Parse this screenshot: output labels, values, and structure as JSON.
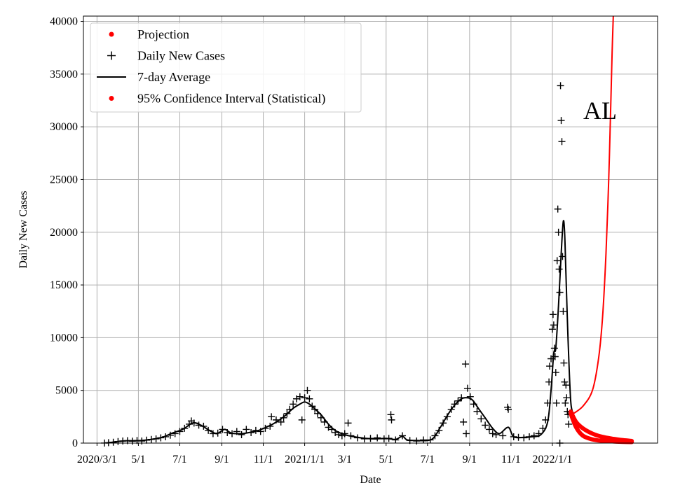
{
  "chart_data": {
    "type": "line",
    "xlabel": "Date",
    "ylabel": "Daily New Cases",
    "annotation": "AL",
    "x_axis": {
      "type": "date",
      "range": [
        "2020-02-10",
        "2022-06-05"
      ],
      "ticks": [
        {
          "date": "2020-03-01",
          "label": "2020/3/1"
        },
        {
          "date": "2020-05-01",
          "label": "5/1"
        },
        {
          "date": "2020-07-01",
          "label": "7/1"
        },
        {
          "date": "2020-09-01",
          "label": "9/1"
        },
        {
          "date": "2020-11-01",
          "label": "11/1"
        },
        {
          "date": "2021-01-01",
          "label": "2021/1/1"
        },
        {
          "date": "2021-03-01",
          "label": "3/1"
        },
        {
          "date": "2021-05-01",
          "label": "5/1"
        },
        {
          "date": "2021-07-01",
          "label": "7/1"
        },
        {
          "date": "2021-09-01",
          "label": "9/1"
        },
        {
          "date": "2021-11-01",
          "label": "11/1"
        },
        {
          "date": "2022-01-01",
          "label": "2022/1/1"
        }
      ]
    },
    "y_axis": {
      "range": [
        0,
        40500
      ],
      "ticks": [
        0,
        5000,
        10000,
        15000,
        20000,
        25000,
        30000,
        35000,
        40000
      ]
    },
    "grid": true,
    "legend_position": "top-left",
    "legend": [
      {
        "label": "Projection",
        "marker": "dot",
        "color": "#ff0000"
      },
      {
        "label": "Daily New Cases",
        "marker": "plus",
        "color": "#000000"
      },
      {
        "label": "7-day Average",
        "marker": "line",
        "color": "#000000"
      },
      {
        "label": "95% Confidence Interval (Statistical)",
        "marker": "dot",
        "color": "#ff0000"
      }
    ],
    "seven_day_average": {
      "color": "#000000",
      "points": [
        [
          "2020-03-15",
          10
        ],
        [
          "2020-04-01",
          150
        ],
        [
          "2020-04-15",
          220
        ],
        [
          "2020-05-01",
          230
        ],
        [
          "2020-05-20",
          350
        ],
        [
          "2020-06-05",
          550
        ],
        [
          "2020-06-20",
          950
        ],
        [
          "2020-07-05",
          1300
        ],
        [
          "2020-07-18",
          1850
        ],
        [
          "2020-07-25",
          1900
        ],
        [
          "2020-08-05",
          1550
        ],
        [
          "2020-08-15",
          1150
        ],
        [
          "2020-08-25",
          900
        ],
        [
          "2020-09-05",
          1300
        ],
        [
          "2020-09-15",
          950
        ],
        [
          "2020-10-01",
          900
        ],
        [
          "2020-10-15",
          1050
        ],
        [
          "2020-10-25",
          1200
        ],
        [
          "2020-11-05",
          1500
        ],
        [
          "2020-11-15",
          1800
        ],
        [
          "2020-11-25",
          2200
        ],
        [
          "2020-12-05",
          2700
        ],
        [
          "2020-12-15",
          3300
        ],
        [
          "2020-12-25",
          3700
        ],
        [
          "2021-01-01",
          3900
        ],
        [
          "2021-01-08",
          3700
        ],
        [
          "2021-01-15",
          3300
        ],
        [
          "2021-01-25",
          2700
        ],
        [
          "2021-02-05",
          1800
        ],
        [
          "2021-02-15",
          1200
        ],
        [
          "2021-03-01",
          800
        ],
        [
          "2021-03-15",
          600
        ],
        [
          "2021-04-01",
          450
        ],
        [
          "2021-04-15",
          400
        ],
        [
          "2021-05-01",
          450
        ],
        [
          "2021-05-15",
          350
        ],
        [
          "2021-05-25",
          650
        ],
        [
          "2021-06-01",
          300
        ],
        [
          "2021-06-15",
          250
        ],
        [
          "2021-07-01",
          250
        ],
        [
          "2021-07-10",
          500
        ],
        [
          "2021-07-20",
          1500
        ],
        [
          "2021-08-01",
          2800
        ],
        [
          "2021-08-10",
          3600
        ],
        [
          "2021-08-20",
          4200
        ],
        [
          "2021-08-28",
          4300
        ],
        [
          "2021-09-05",
          4100
        ],
        [
          "2021-09-15",
          3200
        ],
        [
          "2021-09-25",
          2300
        ],
        [
          "2021-10-05",
          1400
        ],
        [
          "2021-10-15",
          900
        ],
        [
          "2021-10-28",
          1500
        ],
        [
          "2021-11-05",
          600
        ],
        [
          "2021-11-20",
          550
        ],
        [
          "2021-12-01",
          600
        ],
        [
          "2021-12-15",
          800
        ],
        [
          "2021-12-25",
          2000
        ],
        [
          "2021-12-30",
          5000
        ],
        [
          "2022-01-03",
          8500
        ],
        [
          "2022-01-06",
          9000
        ],
        [
          "2022-01-10",
          13000
        ],
        [
          "2022-01-14",
          18000
        ],
        [
          "2022-01-17",
          21000
        ],
        [
          "2022-01-19",
          20000
        ],
        [
          "2022-01-21",
          16000
        ],
        [
          "2022-01-24",
          10000
        ],
        [
          "2022-01-28",
          4000
        ],
        [
          "2022-02-01",
          2800
        ]
      ]
    },
    "projection": {
      "color": "#ff0000",
      "points": [
        [
          "2022-02-01",
          2800
        ],
        [
          "2022-02-15",
          3500
        ],
        [
          "2022-03-01",
          5000
        ],
        [
          "2022-03-10",
          8000
        ],
        [
          "2022-03-16",
          12000
        ],
        [
          "2022-03-21",
          18000
        ],
        [
          "2022-03-25",
          25000
        ],
        [
          "2022-03-28",
          32000
        ],
        [
          "2022-03-30",
          37000
        ],
        [
          "2022-04-01",
          41000
        ]
      ]
    },
    "confidence_interval": {
      "color": "#ff0000",
      "upper": [
        [
          "2022-01-28",
          3000
        ],
        [
          "2022-02-05",
          2000
        ],
        [
          "2022-02-15",
          1400
        ],
        [
          "2022-03-01",
          900
        ],
        [
          "2022-03-15",
          600
        ],
        [
          "2022-04-01",
          400
        ],
        [
          "2022-04-15",
          280
        ],
        [
          "2022-04-28",
          200
        ]
      ],
      "lower": [
        [
          "2022-01-28",
          2800
        ],
        [
          "2022-02-05",
          1500
        ],
        [
          "2022-02-15",
          700
        ],
        [
          "2022-03-01",
          350
        ],
        [
          "2022-03-15",
          220
        ],
        [
          "2022-04-01",
          160
        ],
        [
          "2022-04-15",
          120
        ],
        [
          "2022-04-28",
          100
        ]
      ]
    },
    "daily_new_cases": [
      [
        "2020-03-12",
        5
      ],
      [
        "2020-03-18",
        40
      ],
      [
        "2020-03-25",
        80
      ],
      [
        "2020-04-01",
        150
      ],
      [
        "2020-04-08",
        200
      ],
      [
        "2020-04-15",
        230
      ],
      [
        "2020-04-22",
        180
      ],
      [
        "2020-04-29",
        250
      ],
      [
        "2020-05-06",
        200
      ],
      [
        "2020-05-13",
        280
      ],
      [
        "2020-05-20",
        350
      ],
      [
        "2020-05-27",
        400
      ],
      [
        "2020-06-03",
        500
      ],
      [
        "2020-06-10",
        600
      ],
      [
        "2020-06-17",
        750
      ],
      [
        "2020-06-24",
        900
      ],
      [
        "2020-07-01",
        1100
      ],
      [
        "2020-07-08",
        1400
      ],
      [
        "2020-07-15",
        1800
      ],
      [
        "2020-07-18",
        2100
      ],
      [
        "2020-07-22",
        1900
      ],
      [
        "2020-07-29",
        1700
      ],
      [
        "2020-08-05",
        1600
      ],
      [
        "2020-08-12",
        1200
      ],
      [
        "2020-08-19",
        900
      ],
      [
        "2020-08-26",
        950
      ],
      [
        "2020-09-02",
        1300
      ],
      [
        "2020-09-09",
        1000
      ],
      [
        "2020-09-16",
        900
      ],
      [
        "2020-09-23",
        1100
      ],
      [
        "2020-09-30",
        800
      ],
      [
        "2020-10-07",
        1300
      ],
      [
        "2020-10-14",
        1000
      ],
      [
        "2020-10-21",
        1200
      ],
      [
        "2020-10-28",
        1100
      ],
      [
        "2020-11-04",
        1400
      ],
      [
        "2020-11-11",
        1600
      ],
      [
        "2020-11-13",
        2500
      ],
      [
        "2020-11-20",
        2200
      ],
      [
        "2020-11-27",
        2000
      ],
      [
        "2020-12-01",
        2400
      ],
      [
        "2020-12-06",
        2800
      ],
      [
        "2020-12-10",
        3200
      ],
      [
        "2020-12-15",
        3700
      ],
      [
        "2020-12-20",
        4200
      ],
      [
        "2020-12-25",
        4400
      ],
      [
        "2020-12-28",
        2200
      ],
      [
        "2021-01-01",
        4300
      ],
      [
        "2021-01-05",
        5000
      ],
      [
        "2021-01-08",
        4200
      ],
      [
        "2021-01-12",
        3500
      ],
      [
        "2021-01-16",
        3200
      ],
      [
        "2021-01-20",
        2800
      ],
      [
        "2021-01-25",
        2400
      ],
      [
        "2021-01-30",
        2000
      ],
      [
        "2021-02-05",
        1500
      ],
      [
        "2021-02-10",
        1300
      ],
      [
        "2021-02-15",
        1000
      ],
      [
        "2021-02-20",
        800
      ],
      [
        "2021-02-25",
        700
      ],
      [
        "2021-03-01",
        900
      ],
      [
        "2021-03-06",
        1900
      ],
      [
        "2021-03-10",
        700
      ],
      [
        "2021-03-20",
        500
      ],
      [
        "2021-03-30",
        400
      ],
      [
        "2021-04-08",
        450
      ],
      [
        "2021-04-18",
        500
      ],
      [
        "2021-04-28",
        400
      ],
      [
        "2021-05-05",
        450
      ],
      [
        "2021-05-08",
        2700
      ],
      [
        "2021-05-09",
        2200
      ],
      [
        "2021-05-15",
        300
      ],
      [
        "2021-05-25",
        700
      ],
      [
        "2021-06-05",
        250
      ],
      [
        "2021-06-15",
        200
      ],
      [
        "2021-06-25",
        300
      ],
      [
        "2021-07-05",
        300
      ],
      [
        "2021-07-12",
        700
      ],
      [
        "2021-07-18",
        1200
      ],
      [
        "2021-07-24",
        1900
      ],
      [
        "2021-07-30",
        2500
      ],
      [
        "2021-08-05",
        3200
      ],
      [
        "2021-08-10",
        3700
      ],
      [
        "2021-08-15",
        4000
      ],
      [
        "2021-08-20",
        4300
      ],
      [
        "2021-08-23",
        2000
      ],
      [
        "2021-08-26",
        7500
      ],
      [
        "2021-08-27",
        900
      ],
      [
        "2021-08-29",
        5200
      ],
      [
        "2021-09-02",
        4400
      ],
      [
        "2021-09-07",
        3700
      ],
      [
        "2021-09-12",
        3000
      ],
      [
        "2021-09-18",
        2300
      ],
      [
        "2021-09-24",
        1700
      ],
      [
        "2021-09-30",
        1300
      ],
      [
        "2021-10-05",
        900
      ],
      [
        "2021-10-10",
        800
      ],
      [
        "2021-10-20",
        700
      ],
      [
        "2021-10-27",
        3400
      ],
      [
        "2021-10-28",
        3200
      ],
      [
        "2021-11-05",
        600
      ],
      [
        "2021-11-12",
        550
      ],
      [
        "2021-11-20",
        500
      ],
      [
        "2021-11-28",
        600
      ],
      [
        "2021-12-05",
        700
      ],
      [
        "2021-12-12",
        900
      ],
      [
        "2021-12-18",
        1400
      ],
      [
        "2021-12-22",
        2200
      ],
      [
        "2021-12-25",
        3800
      ],
      [
        "2021-12-27",
        5800
      ],
      [
        "2021-12-28",
        7300
      ],
      [
        "2021-12-30",
        8000
      ],
      [
        "2022-01-01",
        10800
      ],
      [
        "2022-01-02",
        12200
      ],
      [
        "2022-01-03",
        11200
      ],
      [
        "2022-01-04",
        9000
      ],
      [
        "2022-01-05",
        8200
      ],
      [
        "2022-01-06",
        6700
      ],
      [
        "2022-01-07",
        3800
      ],
      [
        "2022-01-08",
        17300
      ],
      [
        "2022-01-09",
        22200
      ],
      [
        "2022-01-10",
        20000
      ],
      [
        "2022-01-11",
        16500
      ],
      [
        "2022-01-12",
        14300
      ],
      [
        "2022-01-13",
        33900
      ],
      [
        "2022-01-14",
        30600
      ],
      [
        "2022-01-15",
        28600
      ],
      [
        "2022-01-16",
        17700
      ],
      [
        "2022-01-17",
        12500
      ],
      [
        "2022-01-18",
        7600
      ],
      [
        "2022-01-19",
        5800
      ],
      [
        "2022-01-20",
        3800
      ],
      [
        "2022-01-21",
        5500
      ],
      [
        "2022-01-22",
        4300
      ],
      [
        "2022-01-23",
        3000
      ],
      [
        "2022-01-24",
        2700
      ],
      [
        "2022-01-25",
        1800
      ],
      [
        "2022-01-12",
        0
      ]
    ]
  }
}
